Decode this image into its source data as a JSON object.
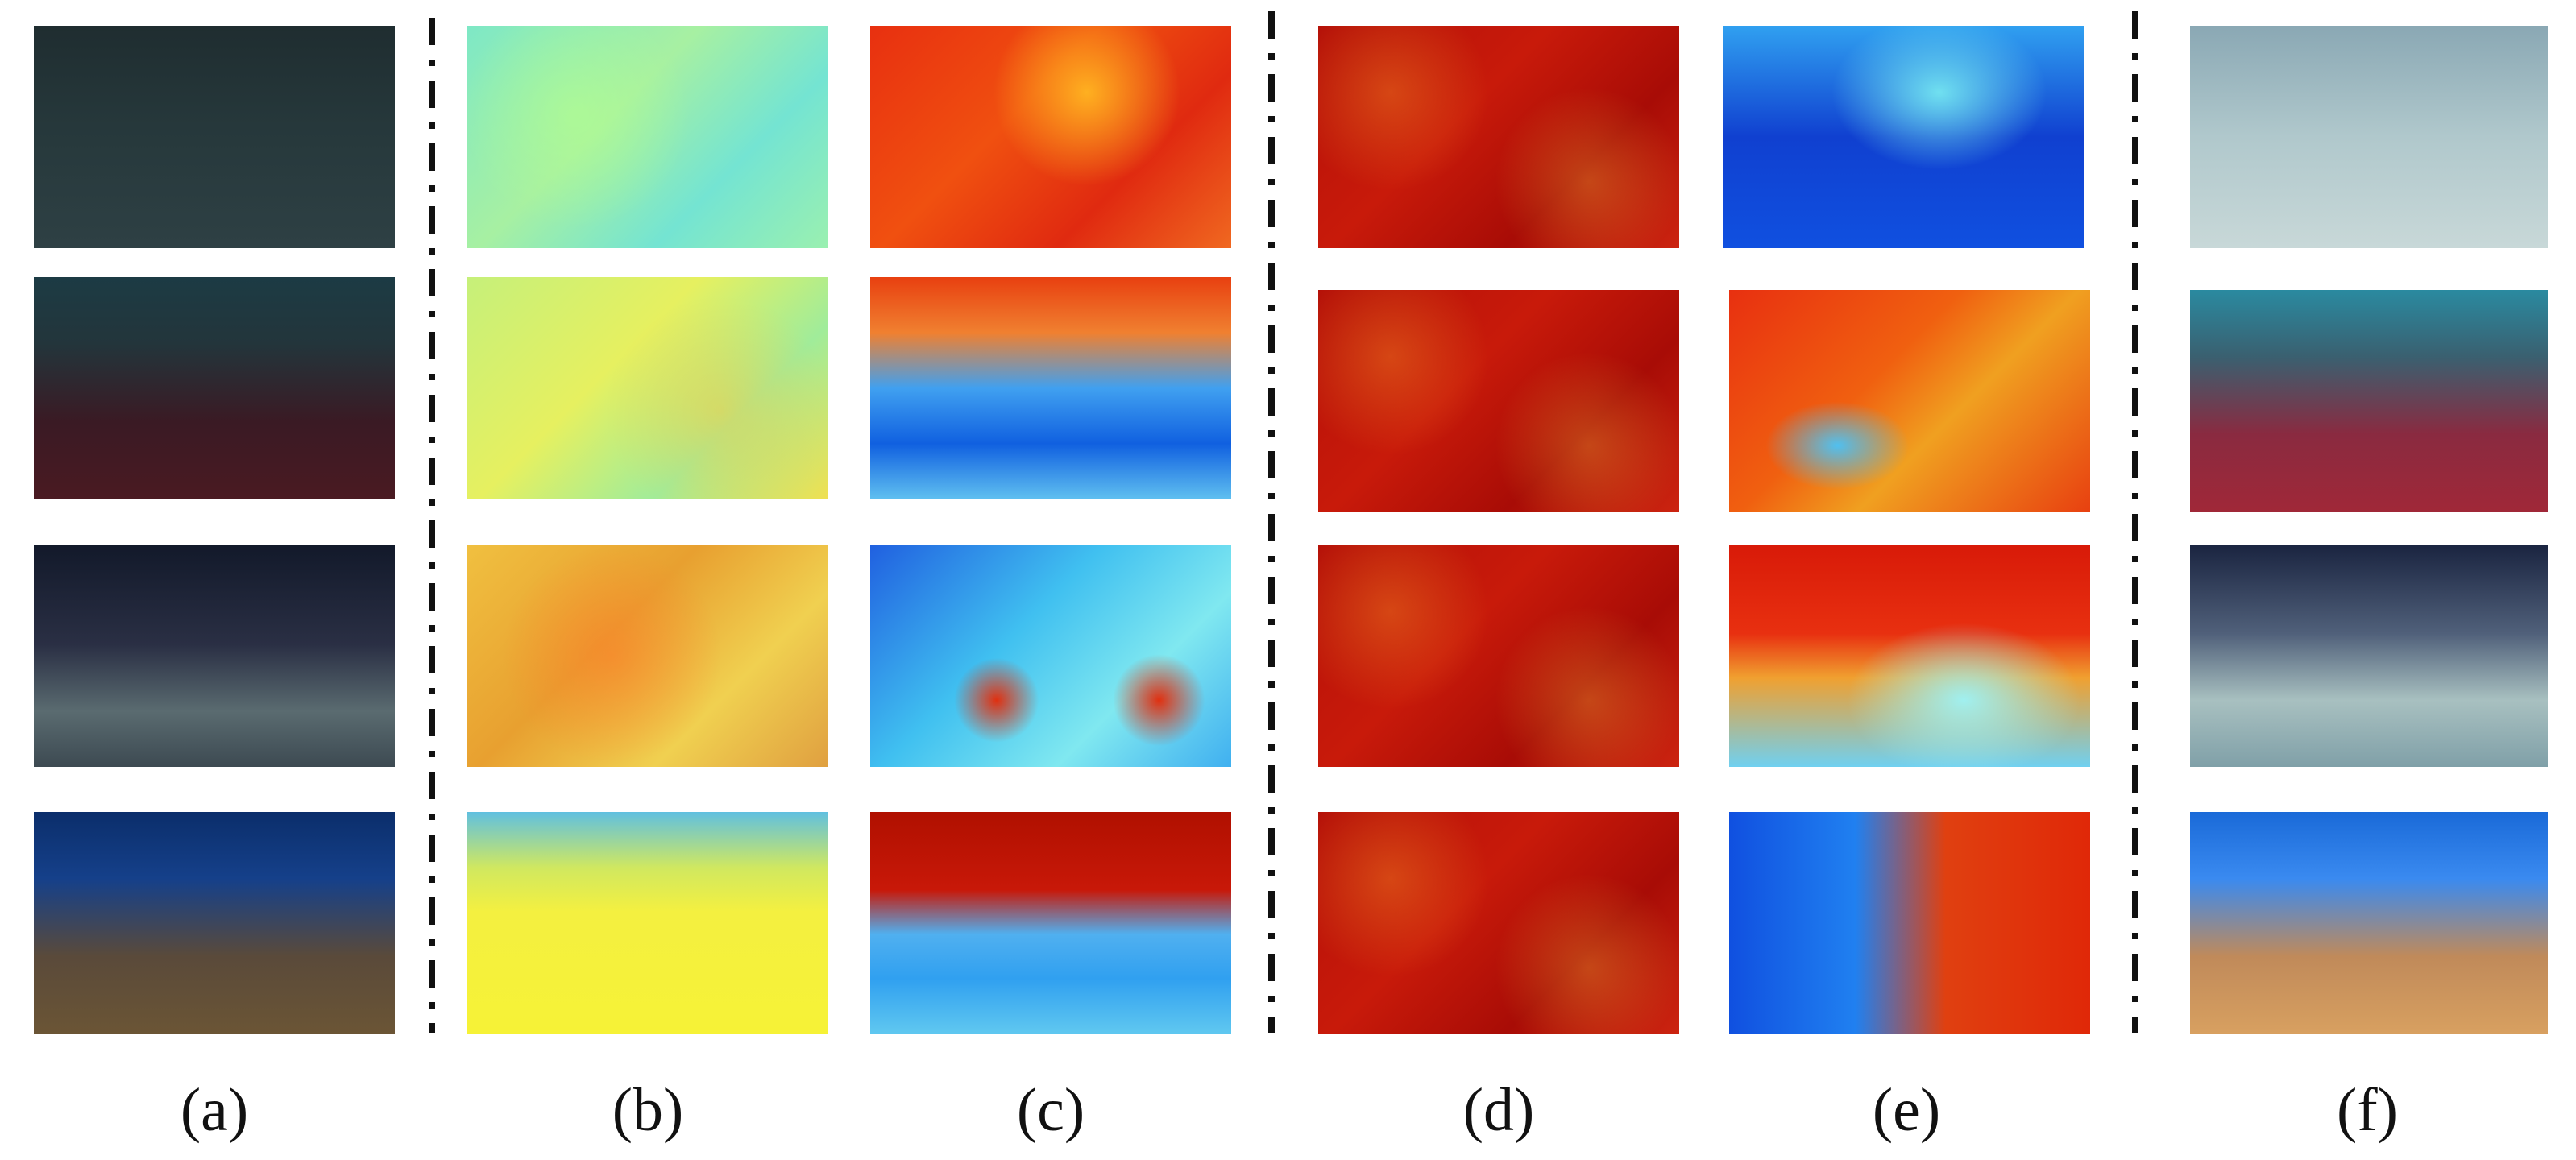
{
  "figure": {
    "panel_labels": [
      "(a)",
      "(b)",
      "(c)",
      "(d)",
      "(e)",
      "(f)"
    ],
    "rows": 4
  }
}
